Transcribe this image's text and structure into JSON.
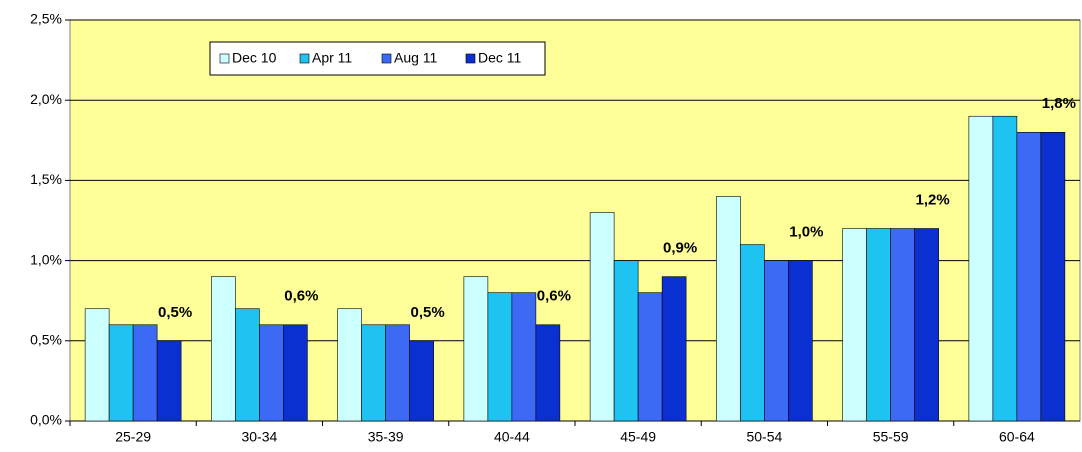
{
  "chart_data": {
    "type": "bar",
    "categories": [
      "25-29",
      "30-34",
      "35-39",
      "40-44",
      "45-49",
      "50-54",
      "55-59",
      "60-64"
    ],
    "series": [
      {
        "name": "Dec 10",
        "color": "#ccffff",
        "values": [
          0.7,
          0.9,
          0.7,
          0.9,
          1.3,
          1.4,
          1.2,
          1.9
        ]
      },
      {
        "name": "Apr 11",
        "color": "#1ec3f2",
        "values": [
          0.6,
          0.7,
          0.6,
          0.8,
          1.0,
          1.1,
          1.2,
          1.9
        ]
      },
      {
        "name": "Aug 11",
        "color": "#3d6af5",
        "values": [
          0.6,
          0.6,
          0.6,
          0.8,
          0.8,
          1.0,
          1.2,
          1.8
        ]
      },
      {
        "name": "Dec 11",
        "color": "#0b30d2",
        "values": [
          0.5,
          0.6,
          0.5,
          0.6,
          0.9,
          1.0,
          1.2,
          1.8
        ],
        "value_labels": [
          "0,5%",
          "0,6%",
          "0,5%",
          "0,6%",
          "0,9%",
          "1,0%",
          "1,2%",
          "1,8%"
        ]
      }
    ],
    "ylim": [
      0,
      2.5
    ],
    "yticks": [
      {
        "value": 0,
        "label": "0,0%"
      },
      {
        "value": 0.5,
        "label": "0,5%"
      },
      {
        "value": 1,
        "label": "1,0%"
      },
      {
        "value": 1.5,
        "label": "1,5%"
      },
      {
        "value": 2,
        "label": "2,0%"
      },
      {
        "value": 2.5,
        "label": "2,5%"
      }
    ],
    "grid": true,
    "legend": "top-left",
    "background": "#ffff99"
  }
}
